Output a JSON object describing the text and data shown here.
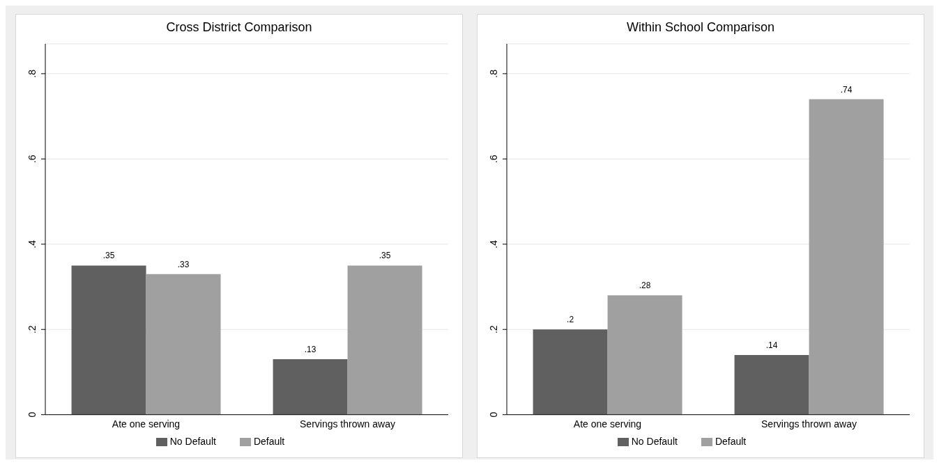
{
  "chart_data": [
    {
      "type": "bar",
      "title": "Cross District Comparison",
      "categories": [
        "Ate one serving",
        "Servings thrown away"
      ],
      "series": [
        {
          "name": "No Default",
          "color": "#606060",
          "values": [
            0.35,
            0.13
          ],
          "value_labels": [
            ".35",
            ".13"
          ]
        },
        {
          "name": "Default",
          "color": "#a0a0a0",
          "values": [
            0.33,
            0.35
          ],
          "value_labels": [
            ".33",
            ".35"
          ]
        }
      ],
      "ylim": [
        0,
        0.87
      ],
      "yticks": [
        0,
        {
          "value": 0.2,
          "label": ".2"
        },
        {
          "value": 0.4,
          "label": ".4"
        },
        {
          "value": 0.6,
          "label": ".6"
        },
        {
          "value": 0.8,
          "label": ".8"
        }
      ],
      "grid": "y",
      "legend": "bottom"
    },
    {
      "type": "bar",
      "title": "Within School Comparison",
      "categories": [
        "Ate one serving",
        "Servings thrown away"
      ],
      "series": [
        {
          "name": "No Default",
          "color": "#606060",
          "values": [
            0.2,
            0.14
          ],
          "value_labels": [
            ".2",
            ".14"
          ]
        },
        {
          "name": "Default",
          "color": "#a0a0a0",
          "values": [
            0.28,
            0.74
          ],
          "value_labels": [
            ".28",
            ".74"
          ]
        }
      ],
      "ylim": [
        0,
        0.87
      ],
      "yticks": [
        0,
        {
          "value": 0.2,
          "label": ".2"
        },
        {
          "value": 0.4,
          "label": ".4"
        },
        {
          "value": 0.6,
          "label": ".6"
        },
        {
          "value": 0.8,
          "label": ".8"
        }
      ],
      "grid": "y",
      "legend": "bottom"
    }
  ]
}
